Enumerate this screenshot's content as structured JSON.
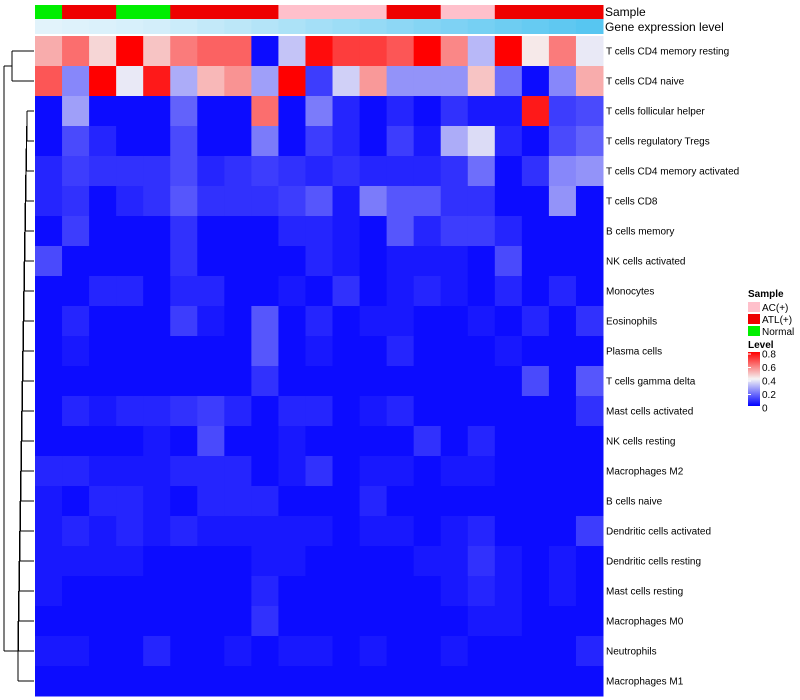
{
  "chart_data": {
    "type": "heatmap",
    "annotations": {
      "sample_label": "Sample",
      "expression_label": "Gene expression level",
      "sample_groups": [
        "Normal",
        "ATL(+)",
        "ATL(+)",
        "Normal",
        "Normal",
        "ATL(+)",
        "ATL(+)",
        "ATL(+)",
        "ATL(+)",
        "AC(+)",
        "AC(+)",
        "AC(+)",
        "AC(+)",
        "ATL(+)",
        "ATL(+)",
        "AC(+)",
        "AC(+)",
        "ATL(+)",
        "ATL(+)",
        "ATL(+)",
        "ATL(+)"
      ],
      "expression_level": [
        0.05,
        0.08,
        0.1,
        0.12,
        0.15,
        0.2,
        0.25,
        0.3,
        0.35,
        0.4,
        0.45,
        0.5,
        0.55,
        0.6,
        0.65,
        0.7,
        0.75,
        0.8,
        0.85,
        0.9,
        0.95
      ]
    },
    "rows": [
      "T cells CD4 memory resting",
      "T cells CD4 naive",
      "T cells follicular helper",
      "T cells regulatory  Tregs",
      "T cells CD4 memory activated",
      "T cells CD8",
      "B cells memory",
      "NK cells activated",
      "Monocytes",
      "Eosinophils",
      "Plasma cells",
      "T cells gamma delta",
      "Mast cells activated",
      "NK cells resting",
      "Macrophages M2",
      "B cells naive",
      "Dendritic cells activated",
      "Dendritic cells resting",
      "Mast cells resting",
      "Macrophages M0",
      "Neutrophils",
      "Macrophages M1"
    ],
    "values": [
      [
        0.52,
        0.62,
        0.45,
        0.8,
        0.48,
        0.6,
        0.64,
        0.64,
        0.02,
        0.32,
        0.78,
        0.7,
        0.7,
        0.66,
        0.8,
        0.58,
        0.3,
        0.8,
        0.42,
        0.6,
        0.38
      ],
      [
        0.66,
        0.22,
        0.8,
        0.38,
        0.76,
        0.28,
        0.5,
        0.56,
        0.26,
        0.8,
        0.1,
        0.34,
        0.55,
        0.24,
        0.24,
        0.24,
        0.48,
        0.18,
        0.02,
        0.22,
        0.52
      ],
      [
        0.02,
        0.26,
        0.02,
        0.02,
        0.02,
        0.16,
        0.02,
        0.02,
        0.62,
        0.02,
        0.2,
        0.06,
        0.02,
        0.06,
        0.02,
        0.08,
        0.04,
        0.04,
        0.76,
        0.1,
        0.12
      ],
      [
        0.02,
        0.12,
        0.06,
        0.02,
        0.02,
        0.12,
        0.02,
        0.02,
        0.2,
        0.02,
        0.1,
        0.06,
        0.02,
        0.1,
        0.04,
        0.28,
        0.36,
        0.06,
        0.02,
        0.12,
        0.16
      ],
      [
        0.06,
        0.1,
        0.08,
        0.08,
        0.08,
        0.12,
        0.06,
        0.08,
        0.1,
        0.08,
        0.06,
        0.08,
        0.06,
        0.06,
        0.06,
        0.08,
        0.18,
        0.02,
        0.08,
        0.22,
        0.24
      ],
      [
        0.06,
        0.08,
        0.02,
        0.06,
        0.08,
        0.14,
        0.08,
        0.08,
        0.08,
        0.1,
        0.14,
        0.04,
        0.2,
        0.14,
        0.14,
        0.08,
        0.08,
        0.02,
        0.02,
        0.24,
        0.02
      ],
      [
        0.02,
        0.1,
        0.02,
        0.02,
        0.02,
        0.08,
        0.02,
        0.02,
        0.02,
        0.06,
        0.06,
        0.04,
        0.02,
        0.14,
        0.06,
        0.1,
        0.1,
        0.06,
        0.02,
        0.02,
        0.02
      ],
      [
        0.12,
        0.02,
        0.02,
        0.02,
        0.02,
        0.08,
        0.02,
        0.02,
        0.02,
        0.02,
        0.06,
        0.04,
        0.02,
        0.04,
        0.04,
        0.04,
        0.02,
        0.12,
        0.02,
        0.02,
        0.02
      ],
      [
        0.02,
        0.02,
        0.06,
        0.06,
        0.02,
        0.06,
        0.06,
        0.02,
        0.02,
        0.04,
        0.02,
        0.08,
        0.02,
        0.04,
        0.06,
        0.04,
        0.02,
        0.06,
        0.02,
        0.06,
        0.02
      ],
      [
        0.02,
        0.06,
        0.02,
        0.02,
        0.02,
        0.1,
        0.04,
        0.02,
        0.14,
        0.02,
        0.06,
        0.02,
        0.04,
        0.04,
        0.02,
        0.02,
        0.04,
        0.02,
        0.06,
        0.02,
        0.08
      ],
      [
        0.02,
        0.04,
        0.02,
        0.02,
        0.02,
        0.02,
        0.02,
        0.02,
        0.14,
        0.02,
        0.04,
        0.02,
        0.02,
        0.06,
        0.02,
        0.02,
        0.02,
        0.04,
        0.02,
        0.02,
        0.02
      ],
      [
        0.02,
        0.02,
        0.02,
        0.02,
        0.02,
        0.02,
        0.02,
        0.02,
        0.08,
        0.02,
        0.02,
        0.02,
        0.02,
        0.02,
        0.02,
        0.02,
        0.02,
        0.02,
        0.12,
        0.02,
        0.14
      ],
      [
        0.02,
        0.06,
        0.04,
        0.06,
        0.06,
        0.08,
        0.1,
        0.06,
        0.02,
        0.06,
        0.06,
        0.02,
        0.04,
        0.06,
        0.02,
        0.02,
        0.02,
        0.02,
        0.02,
        0.02,
        0.08
      ],
      [
        0.02,
        0.02,
        0.02,
        0.02,
        0.04,
        0.02,
        0.12,
        0.02,
        0.02,
        0.04,
        0.02,
        0.02,
        0.02,
        0.02,
        0.08,
        0.02,
        0.06,
        0.02,
        0.02,
        0.02,
        0.02
      ],
      [
        0.06,
        0.06,
        0.04,
        0.04,
        0.04,
        0.06,
        0.06,
        0.06,
        0.02,
        0.04,
        0.08,
        0.02,
        0.04,
        0.04,
        0.02,
        0.04,
        0.04,
        0.02,
        0.02,
        0.02,
        0.02
      ],
      [
        0.04,
        0.02,
        0.06,
        0.06,
        0.04,
        0.02,
        0.06,
        0.06,
        0.06,
        0.02,
        0.02,
        0.02,
        0.06,
        0.02,
        0.02,
        0.02,
        0.02,
        0.02,
        0.02,
        0.02,
        0.02
      ],
      [
        0.04,
        0.06,
        0.04,
        0.06,
        0.04,
        0.06,
        0.04,
        0.04,
        0.04,
        0.04,
        0.04,
        0.02,
        0.04,
        0.04,
        0.02,
        0.04,
        0.06,
        0.02,
        0.02,
        0.02,
        0.1
      ],
      [
        0.04,
        0.04,
        0.04,
        0.04,
        0.02,
        0.02,
        0.02,
        0.02,
        0.04,
        0.04,
        0.02,
        0.02,
        0.02,
        0.02,
        0.04,
        0.04,
        0.08,
        0.04,
        0.02,
        0.04,
        0.02
      ],
      [
        0.04,
        0.02,
        0.02,
        0.02,
        0.02,
        0.02,
        0.02,
        0.02,
        0.06,
        0.02,
        0.02,
        0.02,
        0.02,
        0.02,
        0.02,
        0.04,
        0.06,
        0.04,
        0.02,
        0.04,
        0.02
      ],
      [
        0.02,
        0.02,
        0.02,
        0.02,
        0.02,
        0.02,
        0.02,
        0.02,
        0.08,
        0.02,
        0.02,
        0.02,
        0.02,
        0.02,
        0.02,
        0.02,
        0.04,
        0.04,
        0.02,
        0.02,
        0.02
      ],
      [
        0.04,
        0.04,
        0.02,
        0.02,
        0.06,
        0.02,
        0.02,
        0.04,
        0.02,
        0.04,
        0.04,
        0.02,
        0.04,
        0.02,
        0.02,
        0.04,
        0.02,
        0.02,
        0.02,
        0.02,
        0.06
      ],
      [
        0.02,
        0.02,
        0.02,
        0.02,
        0.02,
        0.02,
        0.02,
        0.02,
        0.02,
        0.02,
        0.02,
        0.02,
        0.02,
        0.02,
        0.02,
        0.02,
        0.02,
        0.02,
        0.02,
        0.02,
        0.02
      ]
    ],
    "legend": {
      "sample_title": "Sample",
      "sample_items": [
        {
          "label": "AC(+)",
          "color": "#ffc0cb"
        },
        {
          "label": "ATL(+)",
          "color": "#ee0000"
        },
        {
          "label": "Normal",
          "color": "#00ee00"
        }
      ],
      "level_title": "Level",
      "level_ticks": [
        "0.8",
        "0.6",
        "0.4",
        "0.2",
        "0"
      ],
      "level_range": [
        0,
        0.8
      ]
    },
    "colors": {
      "low": "#0000ff",
      "mid": "#f5f5f5",
      "high": "#ff0000",
      "expr_low": "#eaf6fc",
      "expr_high": "#4fc3f0"
    }
  }
}
